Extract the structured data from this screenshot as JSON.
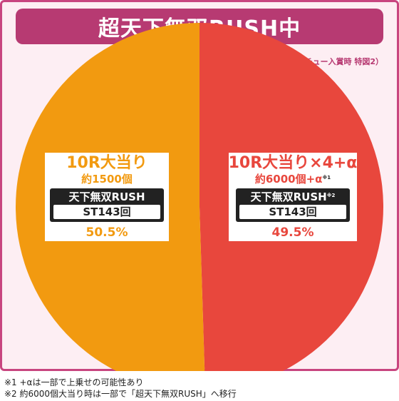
{
  "title": "超天下無双RUSH中",
  "source_note": "（電チュー入賞時 特図2）",
  "colors": {
    "orange": "#f29a10",
    "red": "#e8473d",
    "frame": "#c8457f",
    "title_bg": "#b73a72"
  },
  "chart_data": {
    "type": "pie",
    "title": "超天下無双RUSH中",
    "slices": [
      {
        "label": "10R大当り",
        "value": 50.5,
        "value_label": "50.5%",
        "payout": "約1500個",
        "mode": "天下無双RUSH",
        "st": "ST143回",
        "color": "#f29a10"
      },
      {
        "label": "10R大当り×4+α",
        "value": 49.5,
        "value_label": "49.5%",
        "payout": "約6000個+α",
        "payout_mark": "※1",
        "mode": "天下無双RUSH",
        "mode_mark": "※2",
        "st": "ST143回",
        "color": "#e8473d"
      }
    ]
  },
  "footnotes": [
    "※1 +αは一部で上乗せの可能性あり",
    "※2 約6000個大当り時は一部で「超天下無双RUSH」へ移行"
  ]
}
